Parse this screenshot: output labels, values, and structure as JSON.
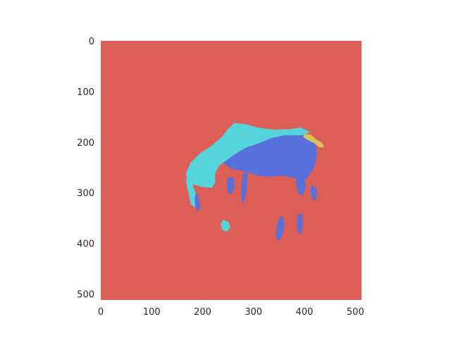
{
  "chart_data": {
    "type": "heatmap",
    "title": "",
    "xlabel": "",
    "ylabel": "",
    "xlim": [
      0,
      512
    ],
    "ylim": [
      512,
      0
    ],
    "x_ticks": [
      "0",
      "100",
      "200",
      "300",
      "400",
      "500"
    ],
    "y_ticks": [
      "0",
      "100",
      "200",
      "300",
      "400",
      "500"
    ],
    "grid": false,
    "image_size": [
      512,
      512
    ],
    "classes": [
      {
        "color": "#db5f57",
        "role": "background"
      },
      {
        "color": "#57d3db",
        "role": "segment"
      },
      {
        "color": "#5770db",
        "role": "segment"
      },
      {
        "color": "#dbc257",
        "role": "segment"
      }
    ],
    "regions": [
      {
        "class": 2,
        "name": "body",
        "points": [
          [
            240,
            240
          ],
          [
            248,
            210
          ],
          [
            262,
            188
          ],
          [
            282,
            182
          ],
          [
            308,
            180
          ],
          [
            338,
            178
          ],
          [
            366,
            177
          ],
          [
            390,
            178
          ],
          [
            408,
            186
          ],
          [
            420,
            200
          ],
          [
            425,
            222
          ],
          [
            419,
            248
          ],
          [
            410,
            262
          ],
          [
            404,
            272
          ],
          [
            398,
            276
          ],
          [
            384,
            272
          ],
          [
            370,
            268
          ],
          [
            352,
            266
          ],
          [
            330,
            268
          ],
          [
            312,
            266
          ],
          [
            296,
            262
          ],
          [
            276,
            256
          ],
          [
            256,
            252
          ]
        ]
      },
      {
        "class": 1,
        "name": "neck",
        "points": [
          [
            250,
            175
          ],
          [
            262,
            163
          ],
          [
            284,
            165
          ],
          [
            310,
            172
          ],
          [
            340,
            176
          ],
          [
            370,
            175
          ],
          [
            392,
            172
          ],
          [
            410,
            180
          ],
          [
            396,
            186
          ],
          [
            360,
            186
          ],
          [
            334,
            192
          ],
          [
            310,
            202
          ],
          [
            286,
            210
          ],
          [
            262,
            224
          ],
          [
            246,
            236
          ],
          [
            232,
            246
          ],
          [
            224,
            262
          ],
          [
            224,
            280
          ],
          [
            218,
            290
          ],
          [
            198,
            288
          ],
          [
            172,
            280
          ],
          [
            168,
            262
          ],
          [
            176,
            242
          ],
          [
            196,
            222
          ],
          [
            220,
            206
          ],
          [
            238,
            190
          ]
        ]
      },
      {
        "class": 1,
        "name": "head",
        "points": [
          [
            172,
            264
          ],
          [
            178,
            276
          ],
          [
            182,
            290
          ],
          [
            186,
            302
          ],
          [
            188,
            318
          ],
          [
            184,
            328
          ],
          [
            177,
            322
          ],
          [
            174,
            306
          ],
          [
            170,
            290
          ],
          [
            168,
            276
          ]
        ]
      },
      {
        "class": 2,
        "name": "head-detail",
        "points": [
          [
            188,
            300
          ],
          [
            192,
            312
          ],
          [
            195,
            330
          ],
          [
            190,
            336
          ],
          [
            186,
            326
          ],
          [
            185,
            310
          ]
        ]
      },
      {
        "class": 1,
        "name": "mouth",
        "points": [
          [
            240,
            354
          ],
          [
            250,
            358
          ],
          [
            254,
            368
          ],
          [
            248,
            376
          ],
          [
            240,
            374
          ],
          [
            236,
            364
          ]
        ]
      },
      {
        "class": 2,
        "name": "front-leg-left",
        "points": [
          [
            250,
            270
          ],
          [
            260,
            270
          ],
          [
            262,
            290
          ],
          [
            256,
            302
          ],
          [
            250,
            300
          ],
          [
            248,
            284
          ]
        ]
      },
      {
        "class": 2,
        "name": "front-leg-right",
        "points": [
          [
            280,
            262
          ],
          [
            288,
            262
          ],
          [
            286,
            296
          ],
          [
            282,
            314
          ],
          [
            278,
            322
          ],
          [
            276,
            304
          ],
          [
            277,
            282
          ]
        ]
      },
      {
        "class": 2,
        "name": "hind-leg-upper",
        "points": [
          [
            384,
            262
          ],
          [
            398,
            264
          ],
          [
            402,
            288
          ],
          [
            396,
            306
          ],
          [
            388,
            300
          ],
          [
            384,
            282
          ]
        ]
      },
      {
        "class": 2,
        "name": "hind-leg-back",
        "points": [
          [
            414,
            286
          ],
          [
            422,
            290
          ],
          [
            424,
            304
          ],
          [
            420,
            316
          ],
          [
            414,
            308
          ],
          [
            412,
            296
          ]
        ]
      },
      {
        "class": 2,
        "name": "hind-leg-lower",
        "points": [
          [
            350,
            350
          ],
          [
            356,
            346
          ],
          [
            360,
            364
          ],
          [
            356,
            384
          ],
          [
            350,
            394
          ],
          [
            344,
            388
          ],
          [
            346,
            370
          ]
        ]
      },
      {
        "class": 2,
        "name": "hind-hoof",
        "points": [
          [
            388,
            342
          ],
          [
            394,
            342
          ],
          [
            396,
            358
          ],
          [
            394,
            376
          ],
          [
            390,
            382
          ],
          [
            386,
            372
          ],
          [
            386,
            354
          ]
        ]
      },
      {
        "class": 3,
        "name": "tail",
        "points": [
          [
            400,
            184
          ],
          [
            412,
            186
          ],
          [
            424,
            196
          ],
          [
            434,
            202
          ],
          [
            438,
            210
          ],
          [
            430,
            210
          ],
          [
            420,
            202
          ],
          [
            408,
            196
          ],
          [
            398,
            190
          ]
        ]
      }
    ]
  }
}
